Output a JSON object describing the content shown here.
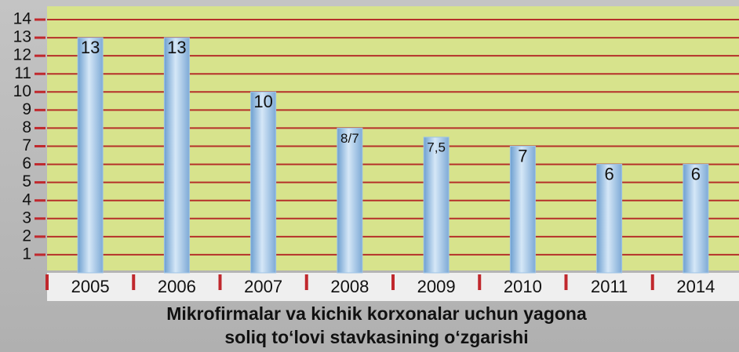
{
  "chart_data": {
    "type": "bar",
    "title": [
      "Mikrofirmalar va kichik korxonalar uchun yagona",
      "soliq to‘lovi stavkasining o‘zgarishi"
    ],
    "categories": [
      "2005",
      "2006",
      "2007",
      "2008",
      "2009",
      "2010",
      "2011",
      "2014"
    ],
    "values": [
      13,
      13,
      10,
      8,
      7.5,
      7,
      6,
      6
    ],
    "value_labels": [
      "13",
      "13",
      "10",
      "8/7",
      "7,5",
      "7",
      "6",
      "6"
    ],
    "color": "#9ec3e6",
    "ylim": [
      0,
      14
    ],
    "yticks": [
      1,
      2,
      3,
      4,
      5,
      6,
      7,
      8,
      9,
      10,
      11,
      12,
      13,
      14
    ],
    "grid": true
  }
}
